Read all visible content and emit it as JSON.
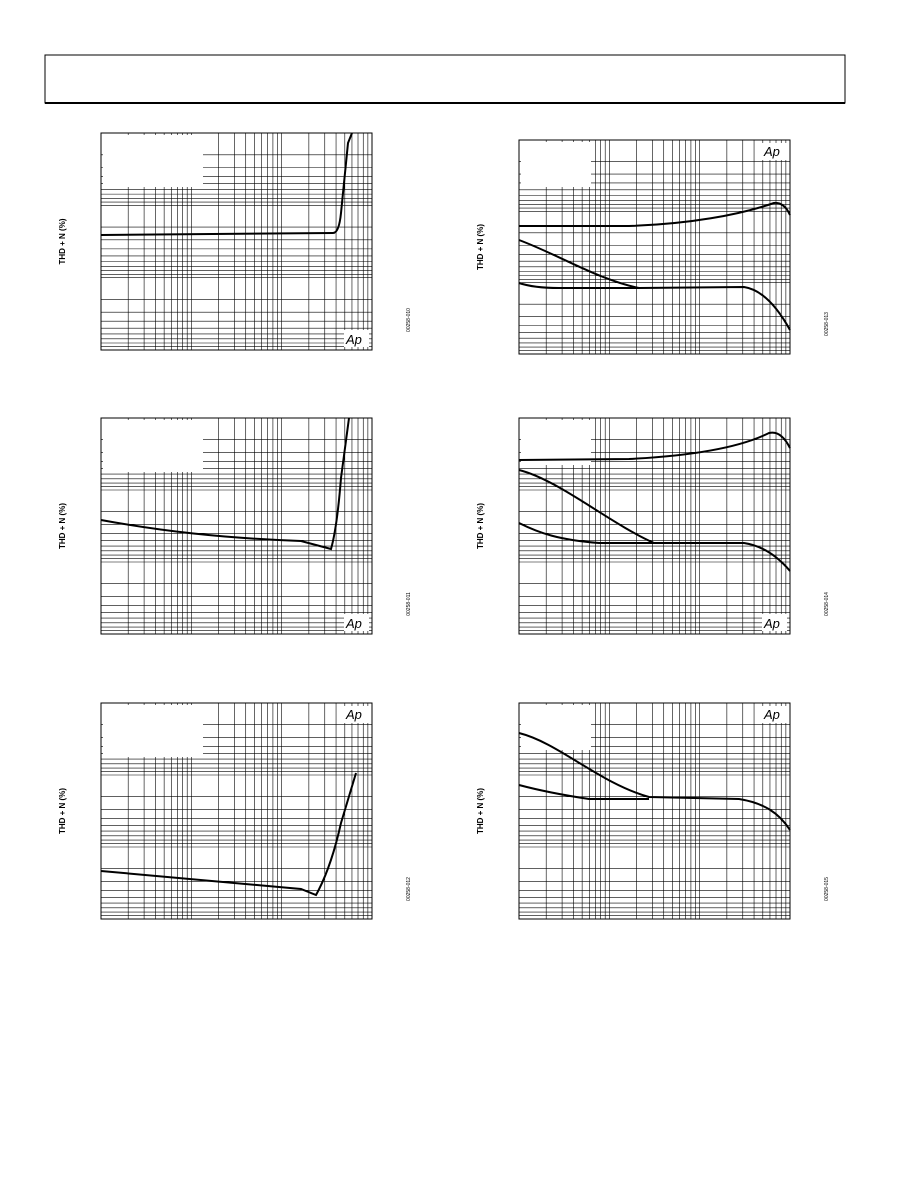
{
  "plots": [
    {
      "y_label": "THD + N (%)",
      "logo": "Ap",
      "figure_id": "00258-010"
    },
    {
      "y_label": "THD + N (%)",
      "logo": "Ap",
      "figure_id": "00258-011"
    },
    {
      "y_label": "THD + N (%)",
      "logo": "Ap",
      "figure_id": "00258-012"
    },
    {
      "y_label": "THD + N (%)",
      "logo": "Ap",
      "figure_id": "00258-013"
    },
    {
      "y_label": "THD + N (%)",
      "logo": "Ap",
      "figure_id": "00258-014"
    },
    {
      "y_label": "THD + N (%)",
      "logo": "Ap",
      "figure_id": "00258-015"
    }
  ]
}
